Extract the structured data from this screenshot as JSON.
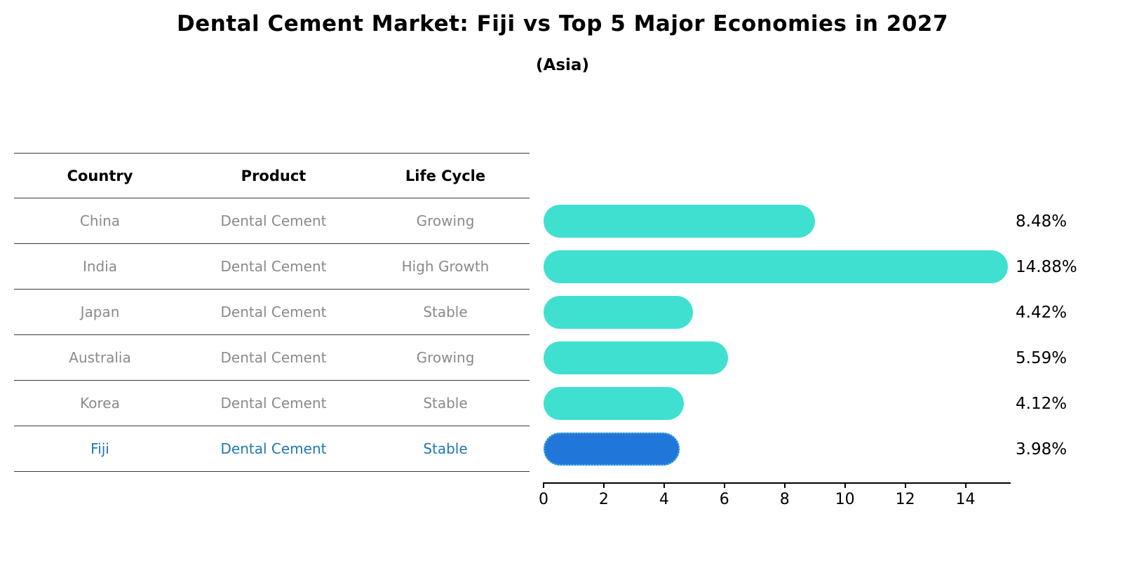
{
  "title": "Dental Cement Market: Fiji vs Top 5 Major Economies in 2027",
  "subtitle": "(Asia)",
  "table": {
    "headers": [
      "Country",
      "Product",
      "Life Cycle"
    ],
    "rows": [
      {
        "country": "China",
        "product": "Dental Cement",
        "life_cycle": "Growing",
        "highlight": false
      },
      {
        "country": "India",
        "product": "Dental Cement",
        "life_cycle": "High Growth",
        "highlight": false
      },
      {
        "country": "Japan",
        "product": "Dental Cement",
        "life_cycle": "Stable",
        "highlight": false
      },
      {
        "country": "Australia",
        "product": "Dental Cement",
        "life_cycle": "Growing",
        "highlight": false
      },
      {
        "country": "Korea",
        "product": "Dental Cement",
        "life_cycle": "Stable",
        "highlight": false
      },
      {
        "country": "Fiji",
        "product": "Dental Cement",
        "life_cycle": "Stable",
        "highlight": true
      }
    ]
  },
  "chart_data": {
    "type": "bar",
    "orientation": "horizontal",
    "title": "Dental Cement Market: Fiji vs Top 5 Major Economies in 2027",
    "subtitle": "(Asia)",
    "categories": [
      "China",
      "India",
      "Japan",
      "Australia",
      "Korea",
      "Fiji"
    ],
    "values": [
      8.48,
      14.88,
      4.42,
      5.59,
      4.12,
      3.98
    ],
    "value_labels": [
      "8.48%",
      "14.88%",
      "4.42%",
      "5.59%",
      "4.12%",
      "3.98%"
    ],
    "xlim": [
      0,
      15.5
    ],
    "xticks": [
      0,
      2,
      4,
      6,
      8,
      10,
      12,
      14
    ],
    "bar_color": "#40E0D0",
    "highlight_color": "#2176d9",
    "highlight_index": 5,
    "grid": false,
    "legend": false,
    "bar_cap_extension": 0.55
  }
}
